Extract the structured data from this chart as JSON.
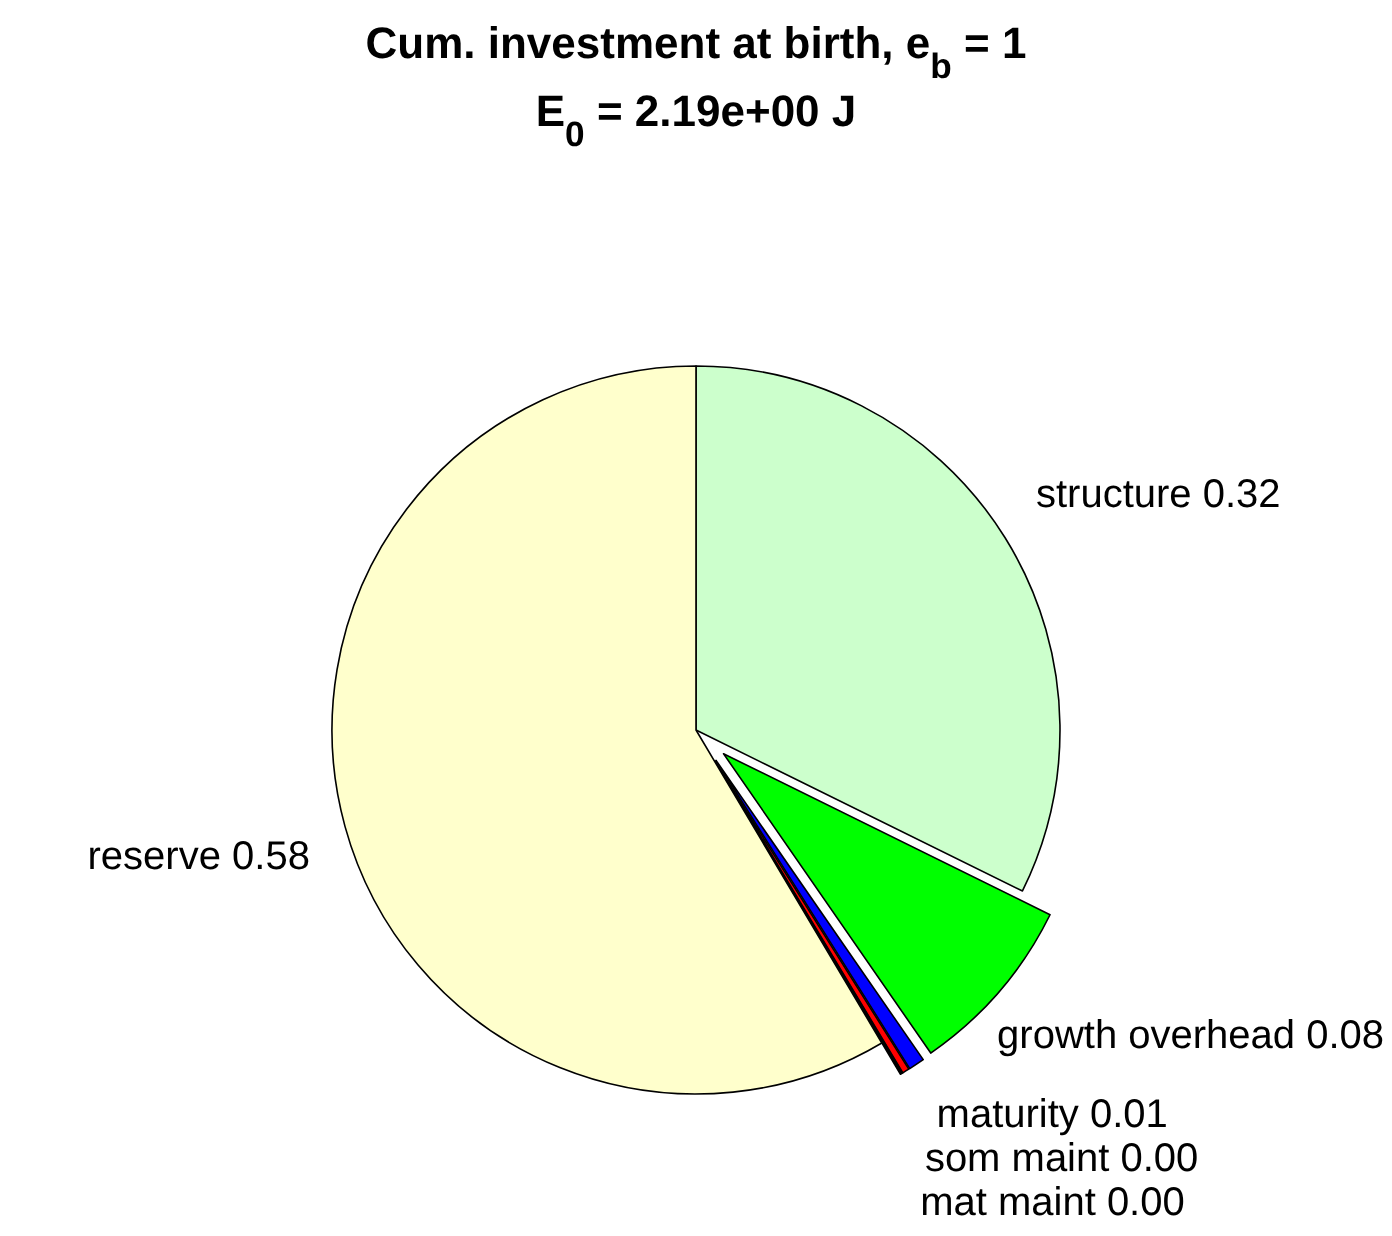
{
  "chart_data": {
    "type": "pie",
    "title": "Cum. investment at birth, e$_{b}$ = 1",
    "subtitle": "E$_{0}$ = 2.19e+00 J",
    "categories": [
      "structure",
      "growth overhead",
      "maturity",
      "som maint",
      "mat maint",
      "reserve"
    ],
    "values": [
      0.32,
      0.08,
      0.007,
      0.003,
      0.001,
      0.58
    ],
    "value_labels": [
      "0.32",
      "0.08",
      "0.01",
      "0.00",
      "0.00",
      "0.58"
    ],
    "colors": [
      "#ccffcc",
      "#00ff00",
      "#0000ff",
      "#ff0000",
      "#000000",
      "#ffffcc"
    ]
  }
}
